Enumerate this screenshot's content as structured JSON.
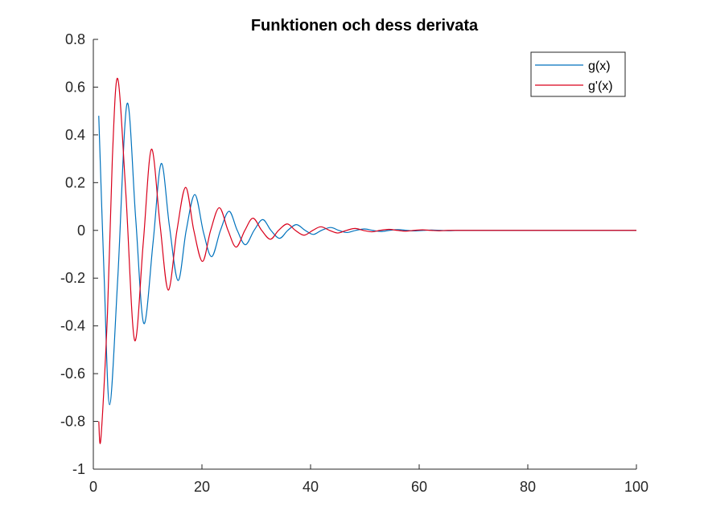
{
  "chart_data": {
    "type": "line",
    "title": "Funktionen och dess derivata",
    "xlabel": "",
    "ylabel": "",
    "xlim": [
      0,
      100
    ],
    "ylim": [
      -1,
      0.8
    ],
    "x_ticks": [
      0,
      20,
      40,
      60,
      80,
      100
    ],
    "y_ticks": [
      -1,
      -0.8,
      -0.6,
      -0.4,
      -0.2,
      0,
      0.2,
      0.4,
      0.6,
      0.8
    ],
    "x_tick_labels": [
      "0",
      "20",
      "40",
      "60",
      "80",
      "100"
    ],
    "y_tick_labels": [
      "-1",
      "-0.8",
      "-0.6",
      "-0.4",
      "-0.2",
      "0",
      "0.2",
      "0.4",
      "0.6",
      "0.8"
    ],
    "grid": false,
    "legend_position": "top-right",
    "series": [
      {
        "name": "g(x)",
        "color": "#0072BD",
        "x": [
          1,
          2,
          3,
          4.5,
          6.2,
          7.8,
          9.3,
          11,
          12.5,
          14,
          15.6,
          17.1,
          18.7,
          20.3,
          21.8,
          23.4,
          25,
          26.5,
          28,
          29.6,
          31.2,
          32.7,
          34.3,
          35.8,
          37.4,
          39,
          40.5,
          42,
          43.7,
          45.2,
          46.7,
          48.3,
          49.9,
          51.4,
          53,
          54.5,
          56.1,
          57.7,
          59.2,
          60.8,
          62.3,
          63.9,
          65.5,
          67,
          70,
          75,
          80,
          90,
          100
        ],
        "y": [
          0.48,
          -0.2,
          -0.73,
          -0.2,
          0.53,
          0.05,
          -0.39,
          -0.05,
          0.28,
          0.02,
          -0.21,
          0.0,
          0.15,
          -0.01,
          -0.11,
          0.0,
          0.08,
          0.0,
          -0.06,
          0.0,
          0.045,
          0.0,
          -0.033,
          0.0,
          0.024,
          0.0,
          -0.017,
          0.0,
          0.012,
          0.0,
          -0.009,
          0.0,
          0.006,
          0.0,
          -0.0045,
          0.0,
          0.0032,
          0.0,
          -0.0023,
          0.0,
          0.0016,
          0.0,
          -0.0012,
          0.0,
          0.0,
          0.0,
          0.0,
          0.0,
          0.0
        ]
      },
      {
        "name": "g'(x)",
        "color": "#D9001B",
        "x": [
          1,
          1.4,
          2.6,
          3.5,
          4.5,
          6,
          7.6,
          9.2,
          10.7,
          12.3,
          13.8,
          15.4,
          17,
          18.5,
          20.1,
          21.6,
          23.2,
          24.8,
          26.3,
          27.9,
          29.4,
          31,
          32.6,
          34.1,
          35.7,
          37.2,
          38.8,
          40.4,
          41.9,
          43.5,
          45,
          46.6,
          48.2,
          49.7,
          51.3,
          52.8,
          54.4,
          56,
          57.5,
          59.1,
          60.6,
          62.2,
          63.8,
          65.3,
          68,
          72,
          80,
          90,
          100
        ],
        "y": [
          -0.8,
          -0.87,
          -0.35,
          0.3,
          0.635,
          0.15,
          -0.46,
          -0.05,
          0.34,
          0.02,
          -0.25,
          0.0,
          0.18,
          0.0,
          -0.13,
          0.0,
          0.095,
          0.0,
          -0.07,
          0.0,
          0.051,
          0.0,
          -0.037,
          0.0,
          0.027,
          0.0,
          -0.02,
          0.0,
          0.015,
          0.0,
          -0.011,
          0.0,
          0.008,
          0.0,
          -0.006,
          0.0,
          0.0043,
          0.0,
          -0.0032,
          0.0,
          0.0023,
          0.0,
          -0.0017,
          0.0,
          0.0,
          0.0,
          0.0,
          0.0,
          0.0
        ]
      }
    ]
  }
}
